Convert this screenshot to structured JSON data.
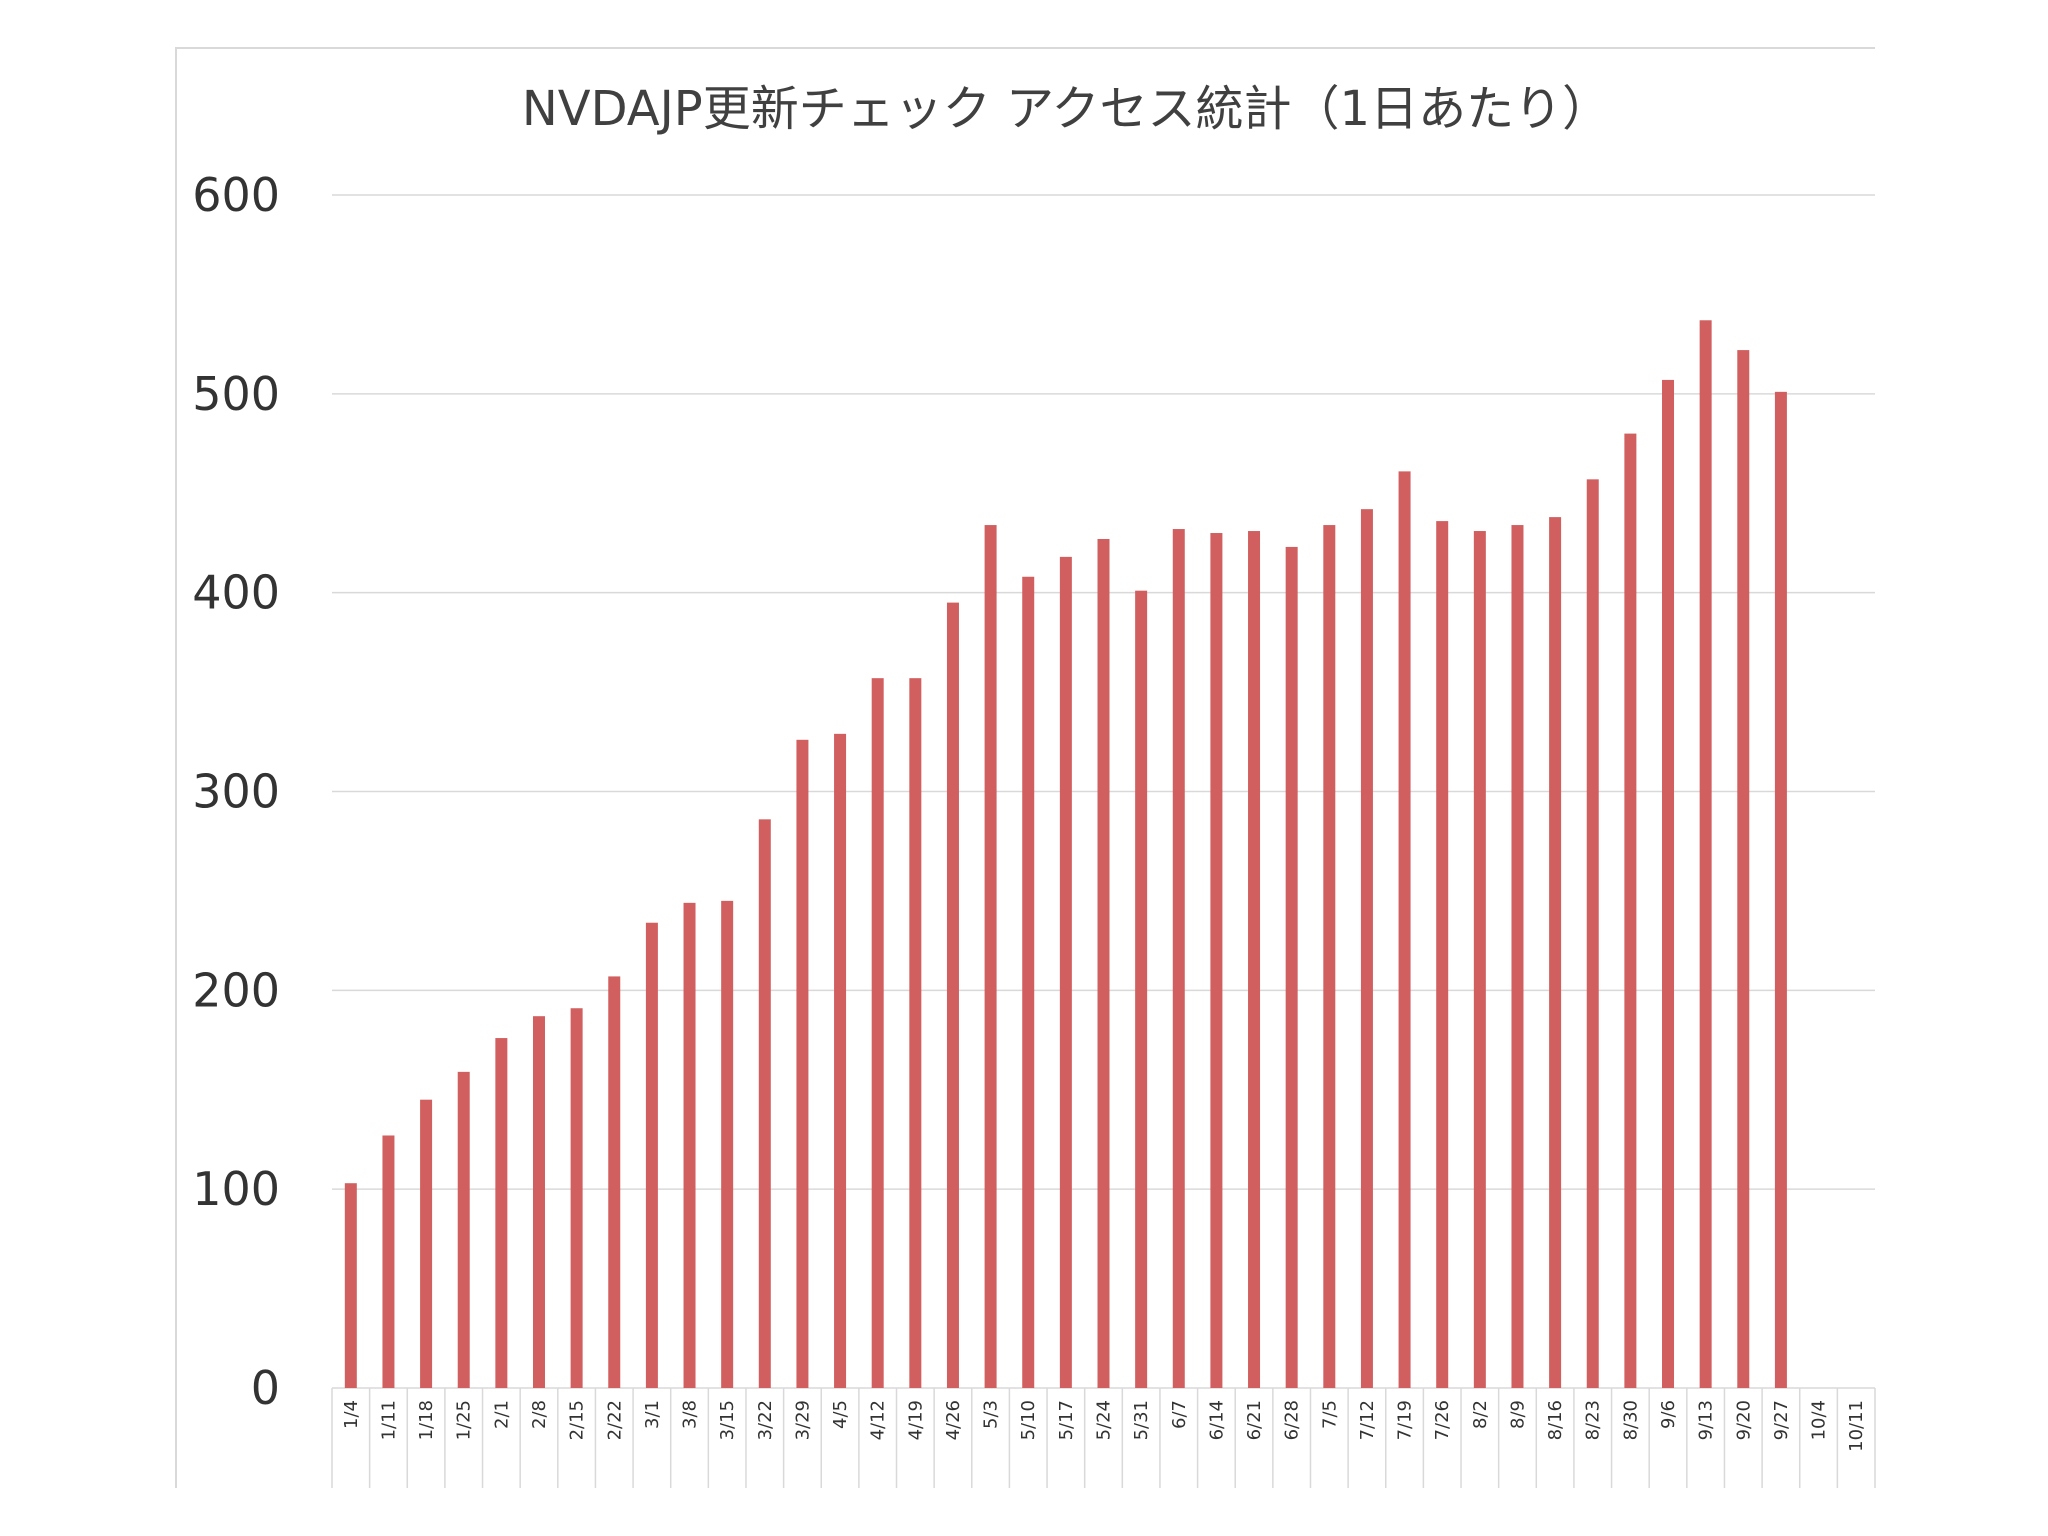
{
  "chart_data": {
    "type": "bar",
    "title": "NVDAJP更新チェック アクセス統計（1日あたり）",
    "xlabel": "",
    "ylabel": "",
    "ylim": [
      0,
      600
    ],
    "yticks": [
      0,
      100,
      200,
      300,
      400,
      500,
      600
    ],
    "grid": true,
    "legend": "none",
    "bar_color": "#d25f5f",
    "categories": [
      "1/4",
      "1/11",
      "1/18",
      "1/25",
      "2/1",
      "2/8",
      "2/15",
      "2/22",
      "3/1",
      "3/8",
      "3/15",
      "3/22",
      "3/29",
      "4/5",
      "4/12",
      "4/19",
      "4/26",
      "5/3",
      "5/10",
      "5/17",
      "5/24",
      "5/31",
      "6/7",
      "6/14",
      "6/21",
      "6/28",
      "7/5",
      "7/12",
      "7/19",
      "7/26",
      "8/2",
      "8/9",
      "8/16",
      "8/23",
      "8/30",
      "9/6",
      "9/13",
      "9/20",
      "9/27",
      "10/4",
      "10/11"
    ],
    "values": [
      103,
      127,
      145,
      159,
      176,
      187,
      191,
      207,
      234,
      244,
      245,
      286,
      326,
      329,
      357,
      357,
      395,
      434,
      408,
      418,
      427,
      401,
      432,
      430,
      431,
      423,
      434,
      442,
      461,
      436,
      431,
      434,
      438,
      457,
      480,
      507,
      537,
      522,
      501,
      null,
      null
    ]
  }
}
